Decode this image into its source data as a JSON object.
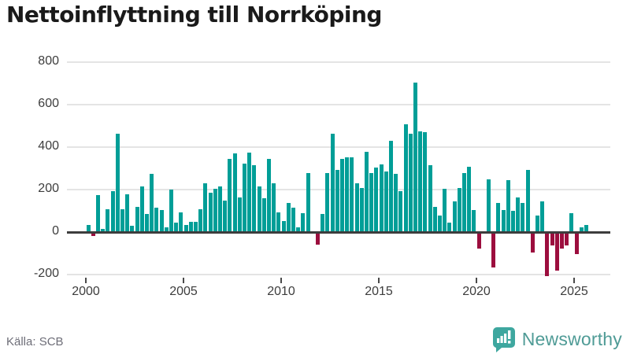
{
  "header": {
    "title": "Nettoinflyttning till Norrköping"
  },
  "footer": {
    "source": "Källa: SCB",
    "brand": "Newsworthy"
  },
  "colors": {
    "bar_positive": "#009e97",
    "bar_negative": "#9c0e3e",
    "zero_axis": "#3d3d3d",
    "grid": "#e4e4e4",
    "tick_text": "#3d3d3d",
    "muted_text": "#6e6e78",
    "brand_icon": "#3ea79f",
    "brand_text": "#4f9b96"
  },
  "chart_data": {
    "type": "bar",
    "title": "Nettoinflyttning till Norrköping",
    "frequency": "quarterly",
    "start": "2000 Q1",
    "end": "2025 Q3",
    "xlabel": "",
    "ylabel": "",
    "grid": true,
    "yticks": [
      800,
      600,
      400,
      200,
      0,
      -200
    ],
    "ylim": [
      -260,
      830
    ],
    "xticks": [
      2000,
      2005,
      2010,
      2015,
      2020,
      2025
    ],
    "series": [
      {
        "name": "Nettoinflyttning",
        "values": [
          30,
          -10,
          170,
          10,
          105,
          190,
          460,
          105,
          175,
          25,
          115,
          210,
          80,
          270,
          110,
          100,
          20,
          195,
          40,
          90,
          30,
          45,
          45,
          105,
          225,
          180,
          200,
          210,
          145,
          340,
          365,
          160,
          320,
          370,
          310,
          210,
          155,
          340,
          225,
          90,
          50,
          135,
          110,
          20,
          85,
          275,
          0,
          -50,
          80,
          275,
          460,
          290,
          340,
          350,
          350,
          225,
          205,
          375,
          275,
          300,
          315,
          280,
          425,
          270,
          190,
          505,
          460,
          700,
          470,
          465,
          310,
          115,
          75,
          200,
          40,
          140,
          205,
          275,
          305,
          100,
          -70,
          0,
          245,
          -160,
          135,
          100,
          240,
          95,
          160,
          135,
          290,
          -90,
          75,
          140,
          -200,
          -55,
          -175,
          -70,
          -55,
          85,
          -95,
          20,
          30
        ]
      }
    ]
  }
}
